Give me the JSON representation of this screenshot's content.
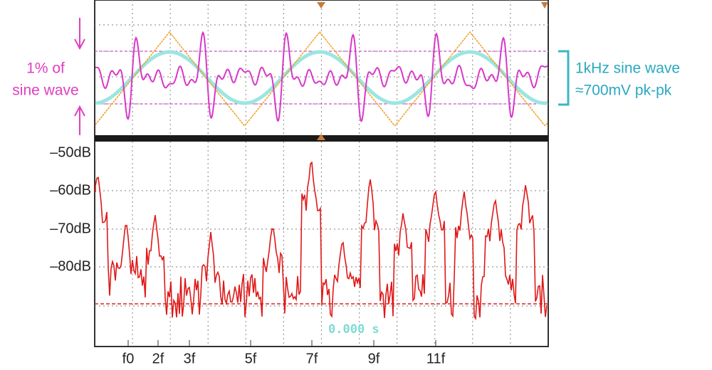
{
  "left_note": {
    "lines": [
      "1% of",
      "sine wave"
    ]
  },
  "right_note": {
    "lines": [
      "1kHz sine wave",
      "≈700mV pk-pk"
    ]
  },
  "y_labels": [
    "–50dB",
    "–60dB",
    "–70dB",
    "–80dB"
  ],
  "x_labels": [
    "f0",
    "2f",
    "3f",
    "5f",
    "7f",
    "9f",
    "11f"
  ],
  "readout": "0.000 s"
}
